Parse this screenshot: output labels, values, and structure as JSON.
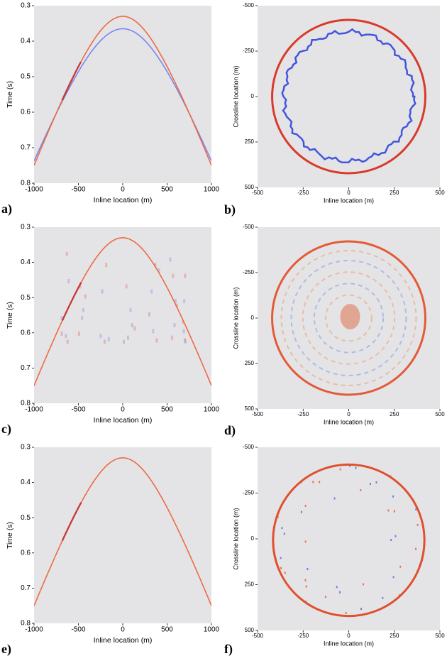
{
  "chart_data": [
    {
      "type": "section",
      "panel_label": "a)",
      "xlabel": "Inline location (m)",
      "ylabel": "Time (s)",
      "xlim": [
        -1000,
        1000
      ],
      "xticks": [
        -1000,
        -500,
        0,
        500,
        1000
      ],
      "ylim": [
        0.3,
        0.8
      ],
      "yticks": [
        0.3,
        0.4,
        0.5,
        0.6,
        0.7,
        0.8
      ],
      "y_inverted": true
    },
    {
      "type": "slice",
      "panel_label": "b)",
      "xlabel": "Inline location (m)",
      "ylabel": "Crossline location (m)",
      "xlim": [
        -500,
        500
      ],
      "xticks": [
        -500,
        -250,
        0,
        250,
        500
      ],
      "ylim": [
        -500,
        500
      ],
      "yticks": [
        -500,
        -250,
        0,
        250,
        500
      ],
      "y_inverted": true
    },
    {
      "type": "section",
      "panel_label": "c)",
      "xlabel": "Inline location (m)",
      "ylabel": "Time (s)",
      "xlim": [
        -1000,
        1000
      ],
      "xticks": [
        -1000,
        -500,
        0,
        500,
        1000
      ],
      "ylim": [
        0.3,
        0.8
      ],
      "yticks": [
        0.3,
        0.4,
        0.5,
        0.6,
        0.7,
        0.8
      ],
      "y_inverted": true
    },
    {
      "type": "slice",
      "panel_label": "d)",
      "xlabel": "Inline location (m)",
      "ylabel": "Crossline location (m)",
      "xlim": [
        -500,
        500
      ],
      "xticks": [
        -500,
        -250,
        0,
        250,
        500
      ],
      "ylim": [
        -500,
        500
      ],
      "yticks": [
        -500,
        -250,
        0,
        250,
        500
      ],
      "y_inverted": true
    },
    {
      "type": "section",
      "panel_label": "e)",
      "xlabel": "Inline location (m)",
      "ylabel": "Time (s)",
      "xlim": [
        -1000,
        1000
      ],
      "xticks": [
        -1000,
        -500,
        0,
        500,
        1000
      ],
      "ylim": [
        0.3,
        0.8
      ],
      "yticks": [
        0.3,
        0.4,
        0.5,
        0.6,
        0.7,
        0.8
      ],
      "y_inverted": true
    },
    {
      "type": "slice",
      "panel_label": "f)",
      "xlabel": "Inline location (m)",
      "ylabel": "Crossline location (m)",
      "xlim": [
        -500,
        500
      ],
      "xticks": [
        -500,
        -250,
        0,
        250,
        500
      ],
      "ylim": [
        -500,
        500
      ],
      "yticks": [
        -500,
        -250,
        0,
        250,
        500
      ],
      "y_inverted": true
    }
  ]
}
